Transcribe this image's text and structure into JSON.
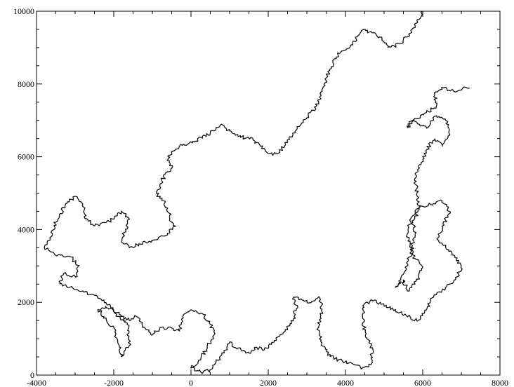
{
  "chart_data": {
    "type": "line",
    "title": "",
    "xlabel": "",
    "ylabel": "",
    "xlim": [
      -4000,
      8000
    ],
    "ylim": [
      0,
      10000
    ],
    "grid": false,
    "line_color": "#111111",
    "x_ticks": [
      -4000,
      -2000,
      0,
      2000,
      4000,
      6000,
      8000
    ],
    "y_ticks": [
      0,
      2000,
      4000,
      6000,
      8000,
      10000
    ],
    "x_tick_labels": [
      "-4000",
      "-2000",
      "0",
      "2000",
      "4000",
      "6000",
      "8000"
    ],
    "y_tick_labels": [
      "0",
      "2000",
      "4000",
      "6000",
      "8000",
      "10000"
    ],
    "series": [
      {
        "points": [
          [
            0,
            200
          ],
          [
            250,
            80
          ],
          [
            500,
            150
          ],
          [
            650,
            350
          ],
          [
            800,
            550
          ],
          [
            1000,
            900
          ],
          [
            1150,
            750
          ],
          [
            1300,
            700
          ],
          [
            1500,
            600
          ],
          [
            1700,
            750
          ],
          [
            1900,
            700
          ],
          [
            2100,
            900
          ],
          [
            2250,
            1050
          ],
          [
            2450,
            1250
          ],
          [
            2650,
            1500
          ],
          [
            2750,
            1900
          ],
          [
            2650,
            2150
          ],
          [
            2850,
            2100
          ],
          [
            3100,
            2000
          ],
          [
            3300,
            2150
          ],
          [
            3400,
            1800
          ],
          [
            3300,
            1300
          ],
          [
            3400,
            800
          ],
          [
            3600,
            500
          ],
          [
            3900,
            400
          ],
          [
            4200,
            300
          ],
          [
            4450,
            200
          ],
          [
            4650,
            300
          ],
          [
            4700,
            700
          ],
          [
            4600,
            900
          ],
          [
            4500,
            1200
          ],
          [
            4450,
            1600
          ],
          [
            4500,
            1950
          ],
          [
            4700,
            2050
          ],
          [
            5000,
            1900
          ],
          [
            5300,
            1800
          ],
          [
            5600,
            1600
          ],
          [
            5900,
            1500
          ],
          [
            6100,
            1800
          ],
          [
            6300,
            2200
          ],
          [
            6600,
            2400
          ],
          [
            6900,
            2700
          ],
          [
            7000,
            3000
          ],
          [
            6800,
            3300
          ],
          [
            6600,
            3500
          ],
          [
            6400,
            3700
          ],
          [
            6500,
            4100
          ],
          [
            6700,
            4500
          ],
          [
            6500,
            4800
          ],
          [
            6200,
            4700
          ],
          [
            5900,
            4600
          ],
          [
            5700,
            4300
          ],
          [
            5600,
            3900
          ],
          [
            5700,
            3500
          ],
          [
            5800,
            3200
          ],
          [
            6000,
            3000
          ],
          [
            5900,
            2700
          ],
          [
            5800,
            2500
          ],
          [
            5600,
            2300
          ],
          [
            5500,
            2600
          ],
          [
            5300,
            2400
          ],
          [
            5450,
            2700
          ],
          [
            5600,
            3000
          ],
          [
            5700,
            3400
          ],
          [
            5800,
            3800
          ],
          [
            5750,
            4200
          ],
          [
            5900,
            4600
          ],
          [
            5850,
            5000
          ],
          [
            5800,
            5400
          ],
          [
            5950,
            5800
          ],
          [
            6100,
            6200
          ],
          [
            6300,
            6500
          ],
          [
            6500,
            6300
          ],
          [
            6700,
            6600
          ],
          [
            6600,
            7000
          ],
          [
            6300,
            7100
          ],
          [
            6100,
            6800
          ],
          [
            5900,
            6900
          ],
          [
            5700,
            7000
          ],
          [
            5600,
            6800
          ],
          [
            5850,
            7050
          ],
          [
            6100,
            7200
          ],
          [
            6350,
            7400
          ],
          [
            6300,
            7700
          ],
          [
            6500,
            7900
          ],
          [
            6800,
            7800
          ],
          [
            7000,
            7850
          ],
          [
            7200,
            7900
          ]
        ]
      },
      {
        "points": [
          [
            6000,
            10000
          ],
          [
            5800,
            9600
          ],
          [
            5600,
            9300
          ],
          [
            5400,
            9100
          ],
          [
            5100,
            9000
          ],
          [
            4900,
            9300
          ],
          [
            4700,
            9400
          ],
          [
            4500,
            9500
          ],
          [
            4300,
            9300
          ],
          [
            4100,
            9000
          ],
          [
            3900,
            8900
          ],
          [
            3700,
            8700
          ],
          [
            3600,
            8400
          ],
          [
            3500,
            8100
          ],
          [
            3400,
            7800
          ],
          [
            3300,
            7500
          ],
          [
            3100,
            7200
          ],
          [
            2900,
            7000
          ],
          [
            2700,
            6700
          ],
          [
            2500,
            6400
          ],
          [
            2250,
            6100
          ],
          [
            2000,
            6100
          ],
          [
            1800,
            6300
          ],
          [
            1600,
            6500
          ],
          [
            1400,
            6500
          ],
          [
            1200,
            6600
          ],
          [
            1000,
            6700
          ],
          [
            800,
            6900
          ],
          [
            600,
            6700
          ],
          [
            300,
            6550
          ],
          [
            100,
            6400
          ],
          [
            -200,
            6350
          ],
          [
            -400,
            6200
          ],
          [
            -600,
            6000
          ],
          [
            -500,
            5700
          ],
          [
            -700,
            5500
          ],
          [
            -800,
            5200
          ],
          [
            -900,
            5000
          ],
          [
            -750,
            4800
          ],
          [
            -600,
            4600
          ],
          [
            -550,
            4300
          ],
          [
            -400,
            4100
          ],
          [
            -600,
            3900
          ],
          [
            -800,
            3800
          ],
          [
            -1000,
            3700
          ],
          [
            -1300,
            3600
          ],
          [
            -1600,
            3500
          ],
          [
            -1800,
            3700
          ],
          [
            -1700,
            4000
          ],
          [
            -1600,
            4300
          ],
          [
            -1800,
            4500
          ],
          [
            -2000,
            4300
          ],
          [
            -2200,
            4200
          ],
          [
            -2500,
            4100
          ],
          [
            -2750,
            4300
          ],
          [
            -2800,
            4700
          ],
          [
            -3000,
            4900
          ],
          [
            -3250,
            4700
          ],
          [
            -3400,
            4400
          ],
          [
            -3550,
            4100
          ],
          [
            -3600,
            3800
          ],
          [
            -3800,
            3500
          ],
          [
            -3500,
            3300
          ],
          [
            -3100,
            3250
          ],
          [
            -2900,
            3000
          ],
          [
            -3000,
            2700
          ],
          [
            -3300,
            2800
          ],
          [
            -3400,
            2500
          ],
          [
            -3150,
            2400
          ],
          [
            -2800,
            2300
          ],
          [
            -2500,
            2200
          ],
          [
            -2200,
            2000
          ],
          [
            -2000,
            1800
          ],
          [
            -1900,
            1600
          ],
          [
            -1700,
            1500
          ],
          [
            -1600,
            1200
          ],
          [
            -1600,
            800
          ],
          [
            -1800,
            500
          ],
          [
            -1900,
            900
          ],
          [
            -2000,
            1300
          ],
          [
            -2200,
            1500
          ],
          [
            -2400,
            1800
          ],
          [
            -2200,
            1900
          ],
          [
            -2000,
            1800
          ],
          [
            -1800,
            1600
          ],
          [
            -1600,
            1500
          ],
          [
            -1400,
            1600
          ],
          [
            -1200,
            1300
          ],
          [
            -1000,
            1100
          ],
          [
            -800,
            1300
          ],
          [
            -500,
            1300
          ],
          [
            -300,
            1200
          ],
          [
            -200,
            1600
          ],
          [
            0,
            1800
          ],
          [
            300,
            1700
          ],
          [
            500,
            1400
          ],
          [
            600,
            1100
          ],
          [
            400,
            700
          ],
          [
            200,
            400
          ],
          [
            0,
            200
          ]
        ]
      }
    ]
  }
}
